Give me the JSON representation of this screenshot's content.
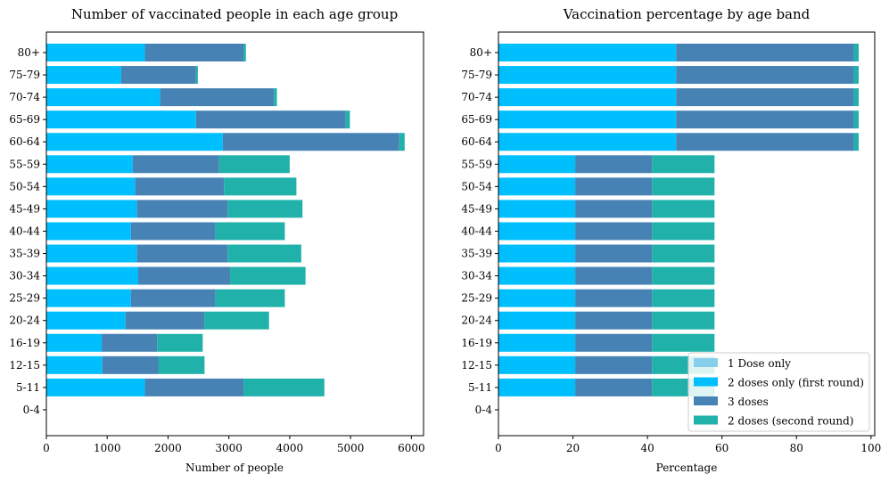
{
  "chart_data": [
    {
      "type": "bar",
      "orientation": "horizontal",
      "stacked": true,
      "title": "Number of vaccinated people in each age group",
      "xlabel": "Number of people",
      "ylabel": "",
      "xlim": [
        0,
        6200
      ],
      "xticks": [
        "0",
        "1000",
        "2000",
        "3000",
        "4000",
        "5000",
        "6000"
      ],
      "categories": [
        "80+",
        "75-79",
        "70-74",
        "65-69",
        "60-64",
        "55-59",
        "50-54",
        "45-49",
        "40-44",
        "35-39",
        "30-34",
        "25-29",
        "20-24",
        "16-19",
        "12-15",
        "5-11",
        "0-4"
      ],
      "series": [
        {
          "name": "1 Dose only",
          "color": "#87ceeb",
          "values": [
            0,
            0,
            0,
            0,
            0,
            0,
            0,
            0,
            0,
            0,
            0,
            0,
            0,
            0,
            0,
            0,
            0
          ]
        },
        {
          "name": "2 doses only (first round)",
          "color": "#00bfff",
          "values": [
            1620,
            1230,
            1870,
            2460,
            2900,
            1420,
            1460,
            1490,
            1390,
            1490,
            1510,
            1390,
            1300,
            910,
            920,
            1620,
            0
          ]
        },
        {
          "name": "3 doses",
          "color": "#4682b4",
          "values": [
            1620,
            1230,
            1870,
            2460,
            2900,
            1420,
            1460,
            1490,
            1390,
            1490,
            1510,
            1390,
            1300,
            910,
            920,
            1620,
            0
          ]
        },
        {
          "name": "2 doses (second round)",
          "color": "#20b2aa",
          "values": [
            40,
            30,
            50,
            70,
            90,
            1160,
            1190,
            1230,
            1140,
            1210,
            1240,
            1140,
            1060,
            750,
            760,
            1330,
            0
          ]
        }
      ],
      "grid": false
    },
    {
      "type": "bar",
      "orientation": "horizontal",
      "stacked": true,
      "title": "Vaccination percentage by age band",
      "xlabel": "Percentage",
      "ylabel": "",
      "xlim": [
        0,
        101
      ],
      "xticks": [
        "0",
        "20",
        "40",
        "60",
        "80",
        "100"
      ],
      "categories": [
        "80+",
        "75-79",
        "70-74",
        "65-69",
        "60-64",
        "55-59",
        "50-54",
        "45-49",
        "40-44",
        "35-39",
        "30-34",
        "25-29",
        "20-24",
        "16-19",
        "12-15",
        "5-11",
        "0-4"
      ],
      "series": [
        {
          "name": "1 Dose only",
          "color": "#87ceeb",
          "values": [
            0,
            0,
            0,
            0,
            0,
            0,
            0,
            0,
            0,
            0,
            0,
            0,
            0,
            0,
            0,
            0,
            0
          ]
        },
        {
          "name": "2 doses only (first round)",
          "color": "#00bfff",
          "values": [
            47.7,
            47.7,
            47.7,
            47.7,
            47.7,
            20.6,
            20.6,
            20.6,
            20.6,
            20.6,
            20.6,
            20.6,
            20.6,
            20.6,
            20.6,
            20.6,
            0
          ]
        },
        {
          "name": "3 doses",
          "color": "#4682b4",
          "values": [
            47.7,
            47.7,
            47.7,
            47.7,
            47.7,
            20.6,
            20.6,
            20.6,
            20.6,
            20.6,
            20.6,
            20.6,
            20.6,
            20.6,
            20.6,
            20.6,
            0
          ]
        },
        {
          "name": "2 doses (second round)",
          "color": "#20b2aa",
          "values": [
            1.3,
            1.3,
            1.3,
            1.3,
            1.3,
            16.8,
            16.8,
            16.8,
            16.8,
            16.8,
            16.8,
            16.8,
            16.8,
            16.8,
            16.8,
            16.8,
            0
          ]
        }
      ],
      "legend": {
        "position": "lower-right",
        "entries": [
          "1 Dose only",
          "2 doses only (first round)",
          "3 doses",
          "2 doses (second round)"
        ]
      },
      "grid": false
    }
  ]
}
